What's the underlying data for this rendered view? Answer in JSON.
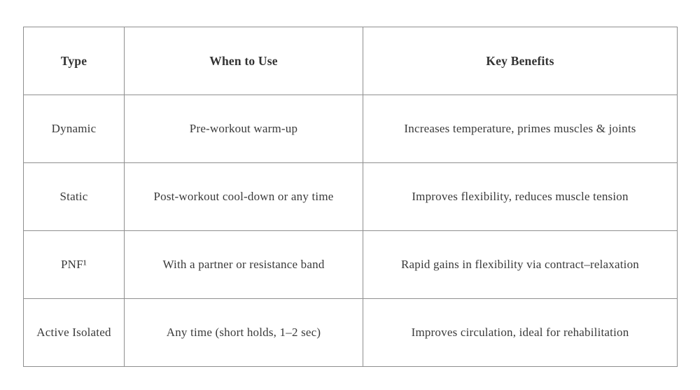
{
  "table": {
    "title_semantic": "stretching-types-comparison-table",
    "headers": [
      "Type",
      "When to Use",
      "Key Benefits"
    ],
    "rows": [
      {
        "type": "Dynamic",
        "when": "Pre-workout warm-up",
        "benefits": "Increases temperature, primes muscles & joints"
      },
      {
        "type": "Static",
        "when": "Post-workout cool-down or any time",
        "benefits": "Improves flexibility, reduces muscle tension"
      },
      {
        "type": "PNF¹",
        "when": "With a partner or resistance band",
        "benefits": "Rapid gains in flexibility via contract–relaxation"
      },
      {
        "type": "Active Isolated",
        "when": "Any time (short holds, 1–2 sec)",
        "benefits": "Improves circulation, ideal for rehabilitation"
      }
    ],
    "colors": {
      "border": "#8f8f8f",
      "text": "#3a3a3a",
      "background": "#ffffff"
    }
  }
}
